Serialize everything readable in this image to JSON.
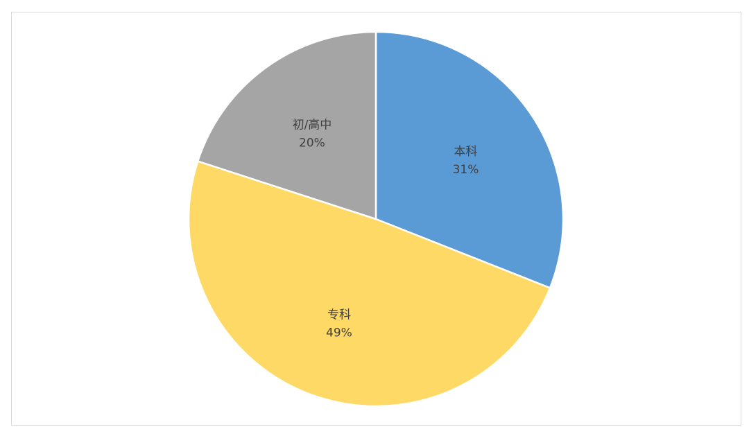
{
  "chart_data": {
    "type": "pie",
    "title": "",
    "start_angle_deg": 0,
    "direction": "clockwise",
    "slices": [
      {
        "label": "本科",
        "value": 31,
        "value_label": "31%",
        "color": "#5b9bd5"
      },
      {
        "label": "专科",
        "value": 49,
        "value_label": "49%",
        "color": "#ffd966"
      },
      {
        "label": "初/高中",
        "value": 20,
        "value_label": "20%",
        "color": "#a5a5a5"
      }
    ],
    "legend": "none",
    "slice_border_color": "#ffffff"
  }
}
